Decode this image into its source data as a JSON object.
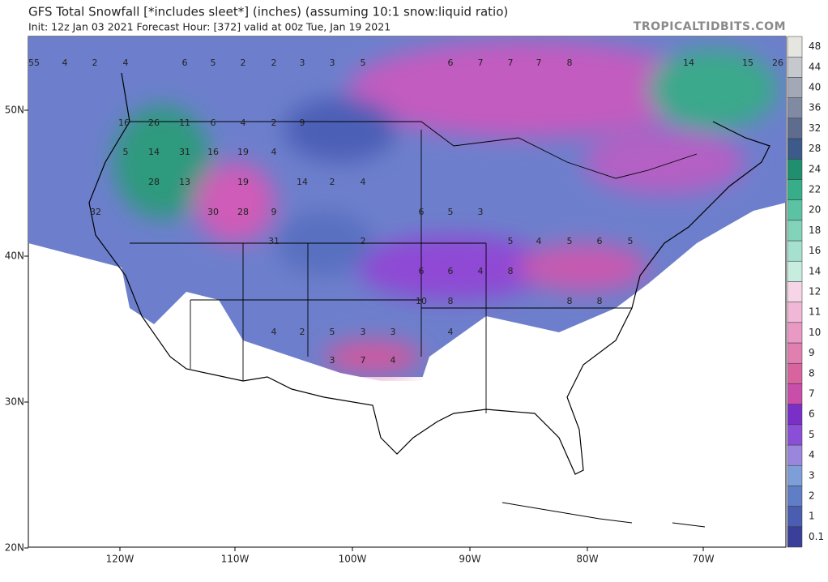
{
  "header": {
    "title": "GFS Total Snowfall [*includes sleet*] (inches) (assuming 10:1 snow:liquid ratio)",
    "subtitle": "Init: 12z Jan 03 2021   Forecast Hour: [372]   valid at 00z Tue, Jan 19 2021",
    "watermark": "TROPICALTIDBITS.COM"
  },
  "lat_labels": [
    "50N",
    "40N",
    "30N",
    "20N"
  ],
  "lon_labels": [
    "120W",
    "110W",
    "100W",
    "90W",
    "80W",
    "70W"
  ],
  "colorbar": {
    "levels": [
      0.1,
      1,
      2,
      3,
      4,
      5,
      6,
      7,
      8,
      9,
      10,
      11,
      12,
      14,
      16,
      18,
      20,
      22,
      24,
      28,
      32,
      36,
      40,
      44,
      48
    ],
    "colors": [
      "#3a3f9a",
      "#4a5db0",
      "#5f7ec6",
      "#7d9ed8",
      "#9b86dd",
      "#8a4fd6",
      "#7a2fc7",
      "#c94ea9",
      "#d8649f",
      "#e07fb0",
      "#e899c4",
      "#f0b7d6",
      "#f6d6e6",
      "#c7ece0",
      "#a6e0cf",
      "#83d2ba",
      "#5bc2a3",
      "#37ad8a",
      "#1f8f6f",
      "#3c5a8a",
      "#5e6c8e",
      "#808aa3",
      "#a2a8b5",
      "#c5c8cc",
      "#e6e6e0"
    ]
  },
  "map_labels": [
    "55",
    "4",
    "2",
    "4",
    "6",
    "5",
    "2",
    "2",
    "3",
    "3",
    "5",
    "6",
    "7",
    "7",
    "7",
    "8",
    "14",
    "15",
    "26",
    "16",
    "26",
    "11",
    "6",
    "4",
    "2",
    "9",
    "5",
    "14",
    "31",
    "16",
    "19",
    "4",
    "28",
    "13",
    "19",
    "14",
    "2",
    "4",
    "32",
    "30",
    "28",
    "9",
    "31",
    "2",
    "6",
    "5",
    "3",
    "5",
    "4",
    "5",
    "6",
    "5",
    "6",
    "6",
    "4",
    "8",
    "10",
    "8",
    "8",
    "8",
    "5",
    "3",
    "3",
    "4",
    "3",
    "7",
    "4",
    "2",
    "4"
  ]
}
